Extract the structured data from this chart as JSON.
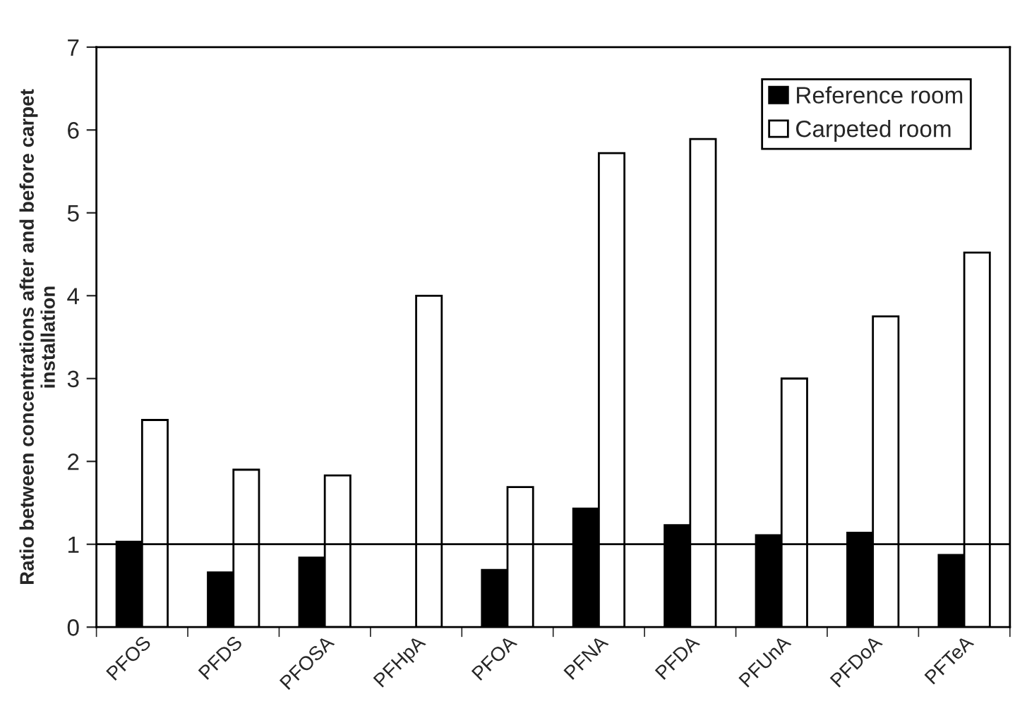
{
  "chart_data": {
    "type": "bar",
    "ylabel": "Ratio between concentrations after and before carpet\ninstallation",
    "categories": [
      "PFOS",
      "PFDS",
      "PFOSA",
      "PFHpA",
      "PFOA",
      "PFNA",
      "PFDA",
      "PFUnA",
      "PFDoA",
      "PFTeA"
    ],
    "series": [
      {
        "name": "Reference room",
        "color": "#000000",
        "values": [
          1.03,
          0.66,
          0.84,
          null,
          0.69,
          1.43,
          1.23,
          1.11,
          1.14,
          0.87
        ]
      },
      {
        "name": "Carpeted room",
        "color": "#ffffff",
        "values": [
          2.5,
          1.9,
          1.83,
          4.0,
          1.69,
          5.72,
          5.89,
          3.0,
          3.75,
          4.52
        ]
      }
    ],
    "ylim": [
      0,
      7
    ],
    "yticks": [
      0,
      1,
      2,
      3,
      4,
      5,
      6,
      7
    ],
    "grid": false,
    "legend": "top right",
    "ref_lines": [
      {
        "axis": "y",
        "value": 1,
        "color": "#000000"
      }
    ]
  }
}
